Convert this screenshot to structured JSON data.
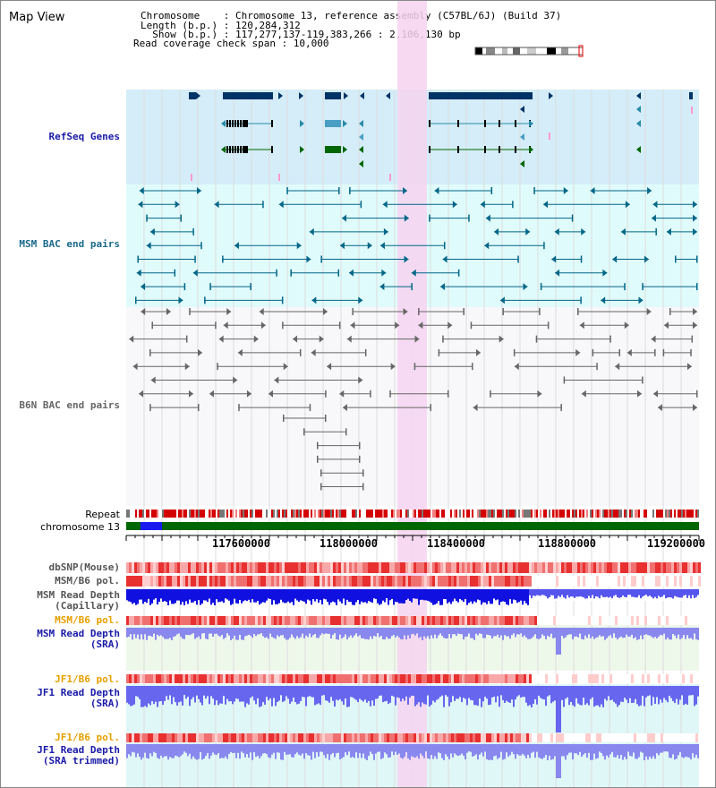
{
  "title": "Map View",
  "info": {
    "line1": "Chromosome    : Chromosome 13, reference assembly (C57BL/6J) (Build 37)",
    "line2": "Length (b.p.) : 120,284,312",
    "line3": "  Show (b.p.) : 117,277,137-119,383,266 : 2,106,130 bp",
    "line4": "Read coverage check span : 10,000"
  },
  "tracks": {
    "refseq": "RefSeq Genes",
    "msm_bac": "MSM BAC end pairs",
    "b6n_bac": "B6N BAC end pairs",
    "repeat": "Repeat",
    "chromosome": "chromosome 13"
  },
  "axis": {
    "ticks": [
      "117600000",
      "118000000",
      "118400000",
      "118800000",
      "119200000"
    ]
  },
  "lower": {
    "dbsnp": "dbSNP(Mouse)",
    "msm_b6_pol": "MSM/B6 pol.",
    "msm_read_cap": "MSM Read Depth\n(Capillary)",
    "msm_b6_pol2": "MSM/B6 pol.",
    "msm_read_sra": "MSM Read Depth\n(SRA)",
    "jf1_b6_pol": "JF1/B6 pol.",
    "jf1_read_sra": "JF1 Read Depth\n(SRA)",
    "jf1_b6_pol2": "JF1/B6 pol.",
    "jf1_read_trim": "JF1 Read Depth\n(SRA trimmed)"
  },
  "colors": {
    "refseq_bg": "#d4edf9",
    "msm_bg": "#e0fbfb",
    "b6n_bg": "#f8f8fb",
    "highlight": "#f6d4f0",
    "navy": "#003366",
    "teal": "#006688",
    "gray": "#555555",
    "chrom_green": "#006600"
  }
}
